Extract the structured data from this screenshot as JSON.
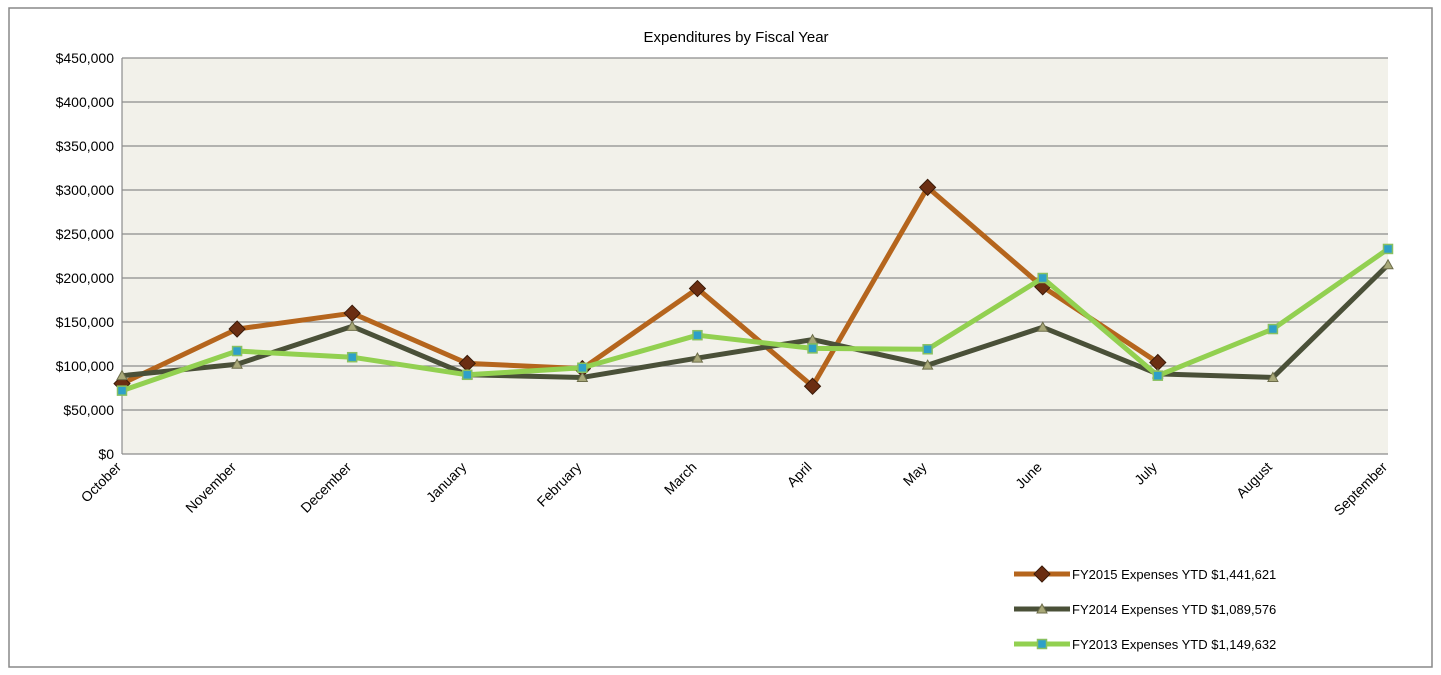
{
  "chart_data": {
    "type": "line",
    "title": "Expenditures by Fiscal Year",
    "xlabel": "",
    "ylabel": "",
    "categories": [
      "October",
      "November",
      "December",
      "January",
      "February",
      "March",
      "April",
      "May",
      "June",
      "July",
      "August",
      "September"
    ],
    "ylim": [
      0,
      450000
    ],
    "yticks": [
      0,
      50000,
      100000,
      150000,
      200000,
      250000,
      300000,
      350000,
      400000,
      450000
    ],
    "ytick_labels": [
      "$0",
      "$50,000",
      "$100,000",
      "$150,000",
      "$200,000",
      "$250,000",
      "$300,000",
      "$350,000",
      "$400,000",
      "$450,000"
    ],
    "grid": true,
    "legend_position": "bottom-right",
    "series": [
      {
        "name": "FY2015 Expenses YTD $1,441,621",
        "color": "#b5651d",
        "marker_color": "#6b2e12",
        "marker": "diamond",
        "values": [
          80000,
          142000,
          160000,
          103000,
          97000,
          188000,
          77000,
          303000,
          190000,
          104000,
          null,
          null
        ]
      },
      {
        "name": "FY2014 Expenses YTD $1,089,576",
        "color": "#4a5038",
        "marker_color": "#a8a878",
        "marker": "triangle",
        "values": [
          89000,
          102000,
          145000,
          90000,
          87000,
          109000,
          130000,
          101000,
          144000,
          91000,
          87000,
          215000
        ]
      },
      {
        "name": "FY2013 Expenses YTD $1,149,632",
        "color": "#92d050",
        "marker_color": "#2ea0c8",
        "marker": "square",
        "values": [
          72000,
          117000,
          110000,
          90000,
          98000,
          135000,
          120000,
          119000,
          200000,
          89000,
          142000,
          233000
        ]
      }
    ]
  }
}
